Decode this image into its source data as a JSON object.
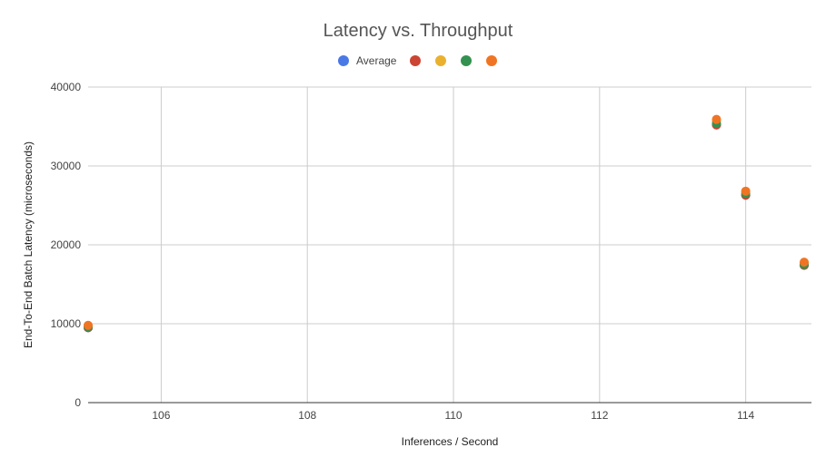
{
  "chart_data": {
    "type": "scatter",
    "title": "Latency vs. Throughput",
    "xlabel": "Inferences / Second",
    "ylabel": "End-To-End Batch Latency (microseconds)",
    "xlim": [
      105,
      114.9
    ],
    "ylim": [
      0,
      40000
    ],
    "x_ticks": [
      "106",
      "108",
      "110",
      "112",
      "114"
    ],
    "y_ticks": [
      "0",
      "10000",
      "20000",
      "30000",
      "40000"
    ],
    "grid": true,
    "legend_position": "top",
    "series": [
      {
        "name": "Average",
        "color": "#4a78e6",
        "points": [
          [
            105.0,
            9500
          ],
          [
            113.6,
            35200
          ],
          [
            114.0,
            26300
          ],
          [
            114.8,
            17400
          ]
        ]
      },
      {
        "name": "",
        "color": "#cc4433",
        "points": [
          [
            105.0,
            9500
          ],
          [
            113.6,
            35200
          ],
          [
            114.0,
            26300
          ],
          [
            114.8,
            17400
          ]
        ]
      },
      {
        "name": "",
        "color": "#eab12e",
        "points": [
          [
            105.0,
            9700
          ],
          [
            113.6,
            35700
          ],
          [
            114.0,
            26700
          ],
          [
            114.8,
            17700
          ]
        ]
      },
      {
        "name": "",
        "color": "#33924f",
        "points": [
          [
            105.0,
            9600
          ],
          [
            113.6,
            35400
          ],
          [
            114.0,
            26500
          ],
          [
            114.8,
            17500
          ]
        ]
      },
      {
        "name": "",
        "color": "#ef7524",
        "points": [
          [
            105.0,
            9800
          ],
          [
            113.6,
            35900
          ],
          [
            114.0,
            26800
          ],
          [
            114.8,
            17800
          ]
        ]
      }
    ]
  }
}
